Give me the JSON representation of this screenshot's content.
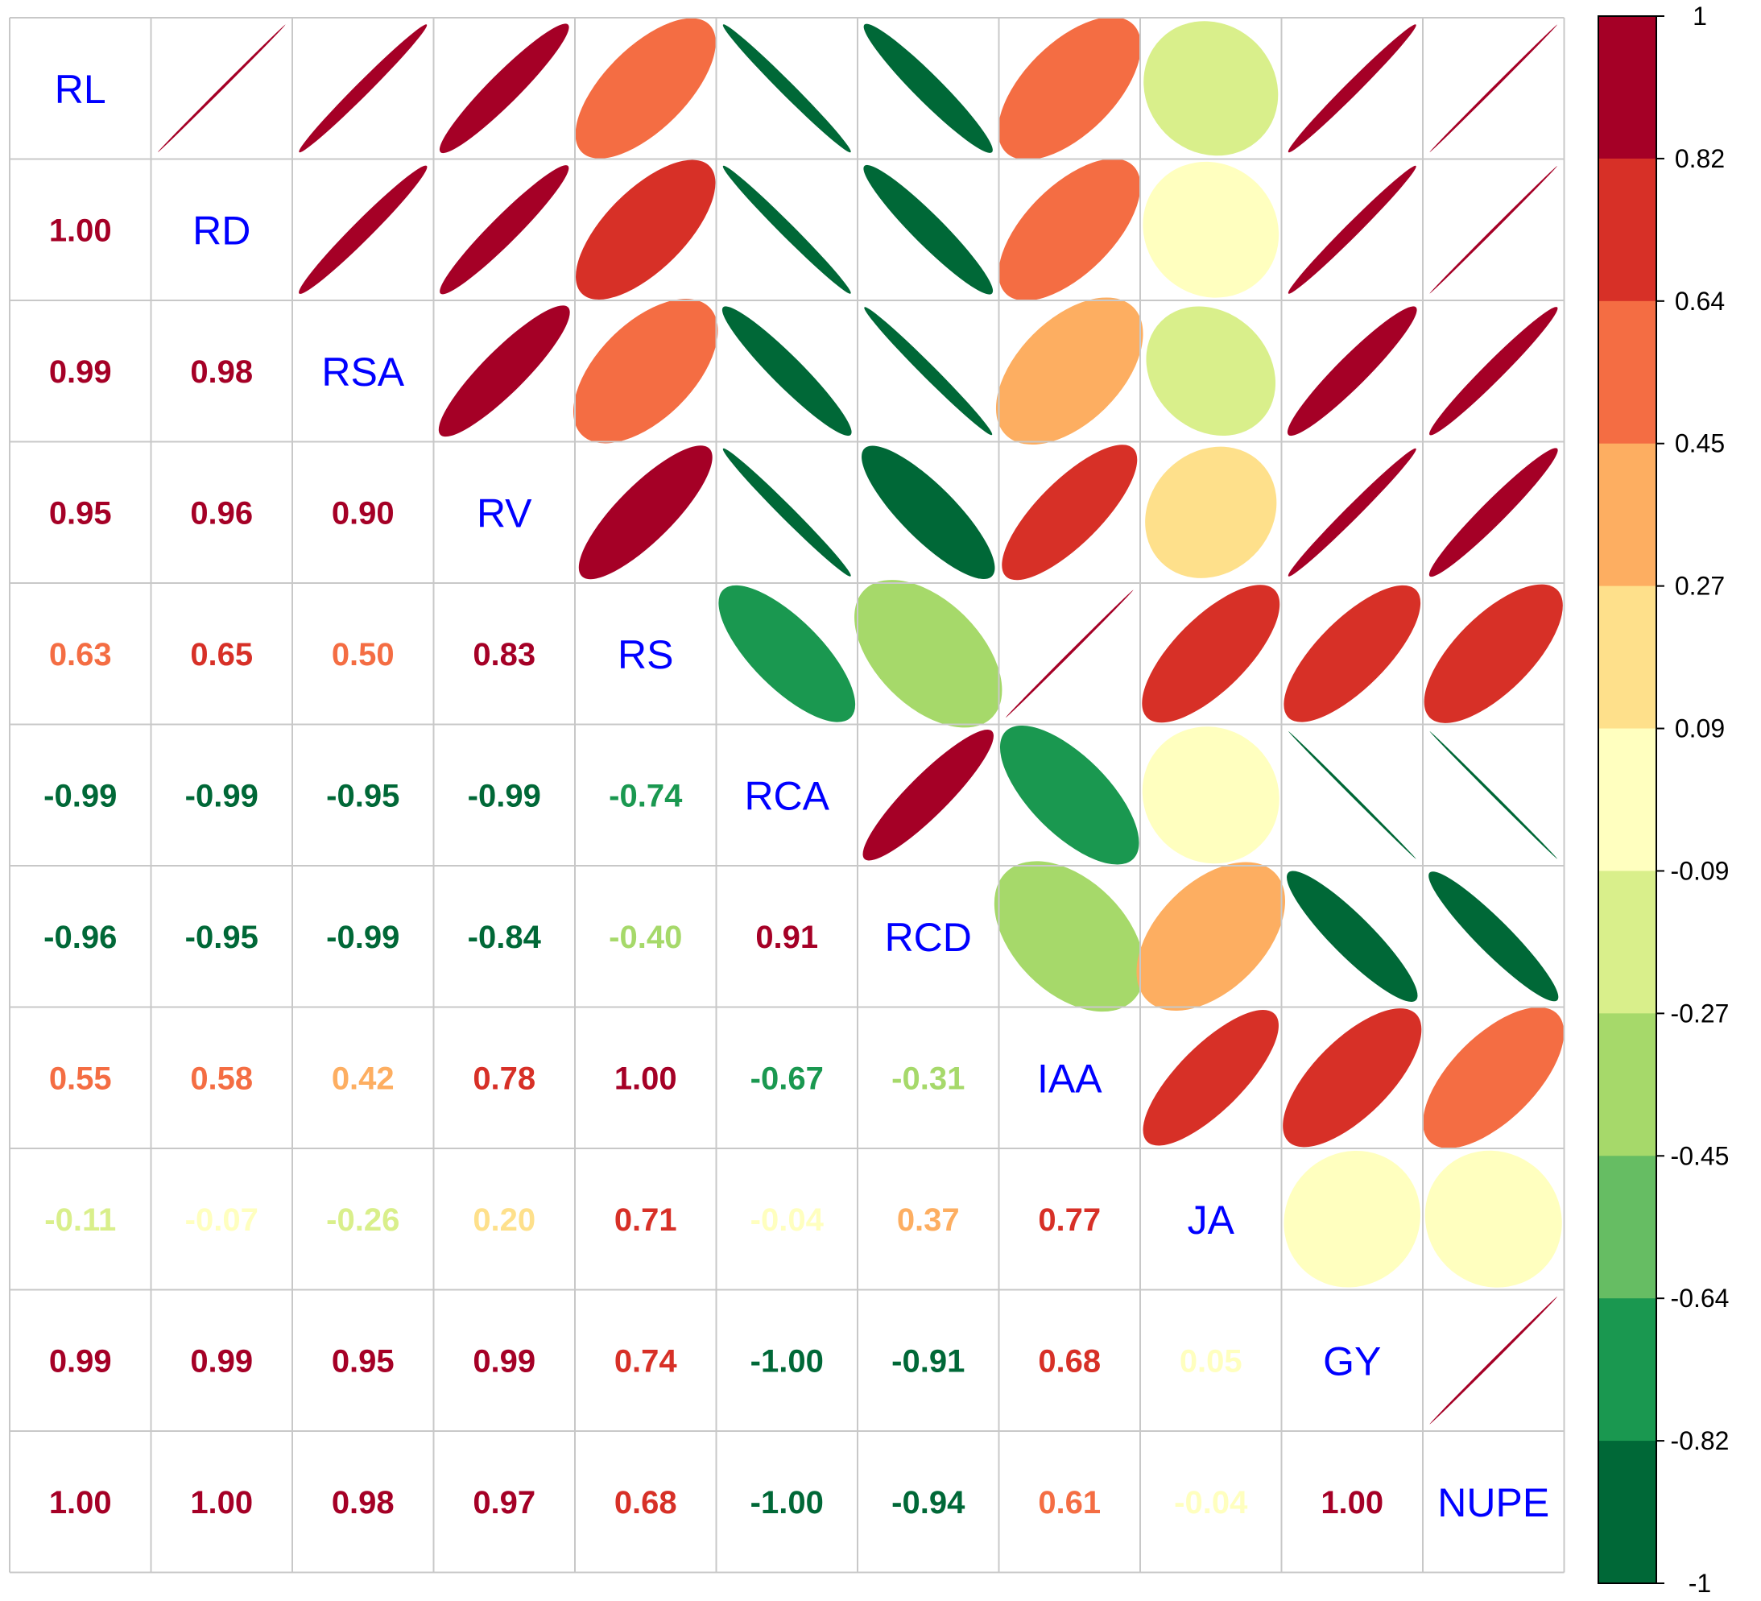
{
  "chart_data": {
    "type": "heatmap",
    "variables": [
      "RL",
      "RD",
      "RSA",
      "RV",
      "RS",
      "RCA",
      "RCD",
      "IAA",
      "JA",
      "GY",
      "NUPE"
    ],
    "matrix": [
      [
        1.0,
        1.0,
        0.99,
        0.95,
        0.63,
        -0.99,
        -0.96,
        0.55,
        -0.11,
        0.99,
        1.0
      ],
      [
        1.0,
        1.0,
        0.98,
        0.96,
        0.65,
        -0.99,
        -0.95,
        0.58,
        -0.07,
        0.99,
        1.0
      ],
      [
        0.99,
        0.98,
        1.0,
        0.9,
        0.5,
        -0.95,
        -0.99,
        0.42,
        -0.26,
        0.95,
        0.98
      ],
      [
        0.95,
        0.96,
        0.9,
        1.0,
        0.83,
        -0.99,
        -0.84,
        0.78,
        0.2,
        0.99,
        0.97
      ],
      [
        0.63,
        0.65,
        0.5,
        0.83,
        1.0,
        -0.74,
        -0.4,
        1.0,
        0.71,
        0.74,
        0.68
      ],
      [
        -0.99,
        -0.99,
        -0.95,
        -0.99,
        -0.74,
        1.0,
        0.91,
        -0.67,
        -0.04,
        -1.0,
        -1.0
      ],
      [
        -0.96,
        -0.95,
        -0.99,
        -0.84,
        -0.4,
        0.91,
        1.0,
        -0.31,
        0.37,
        -0.91,
        -0.94
      ],
      [
        0.55,
        0.58,
        0.42,
        0.78,
        1.0,
        -0.67,
        -0.31,
        1.0,
        0.77,
        0.68,
        0.61
      ],
      [
        -0.11,
        -0.07,
        -0.26,
        0.2,
        0.71,
        -0.04,
        0.37,
        0.77,
        1.0,
        0.05,
        -0.04
      ],
      [
        0.99,
        0.99,
        0.95,
        0.99,
        0.74,
        -1.0,
        -0.91,
        0.68,
        0.05,
        1.0,
        1.0
      ],
      [
        1.0,
        1.0,
        0.98,
        0.97,
        0.68,
        -1.0,
        -0.94,
        0.61,
        -0.04,
        1.0,
        1.0
      ]
    ],
    "lower_labels": [
      [],
      [
        "1.00"
      ],
      [
        "0.99",
        "0.98"
      ],
      [
        "0.95",
        "0.96",
        "0.90"
      ],
      [
        "0.63",
        "0.65",
        "0.50",
        "0.83"
      ],
      [
        "-0.99",
        "-0.99",
        "-0.95",
        "-0.99",
        "-0.74"
      ],
      [
        "-0.96",
        "-0.95",
        "-0.99",
        "-0.84",
        "-0.40",
        "0.91"
      ],
      [
        "0.55",
        "0.58",
        "0.42",
        "0.78",
        "1.00",
        "-0.67",
        "-0.31"
      ],
      [
        "-0.11",
        "-0.07",
        "-0.26",
        "0.20",
        "0.71",
        "-0.04",
        "0.37",
        "0.77"
      ],
      [
        "0.99",
        "0.99",
        "0.95",
        "0.99",
        "0.74",
        "-1.00",
        "-0.91",
        "0.68",
        "0.05"
      ],
      [
        "1.00",
        "1.00",
        "0.98",
        "0.97",
        "0.68",
        "-1.00",
        "-0.94",
        "0.61",
        "-0.04",
        "1.00"
      ]
    ],
    "upper_glyph": "ellipse",
    "lower_glyph": "number",
    "diagonal_label_color": "#0000ff",
    "grid": true,
    "legend_placement": "right",
    "color_range": [
      -1,
      1
    ],
    "colorbar_ticks": [
      "1",
      "0.82",
      "0.64",
      "0.45",
      "0.27",
      "0.09",
      "-0.09",
      "-0.27",
      "-0.45",
      "-0.64",
      "-0.82",
      "-1"
    ],
    "palette": [
      "#006837",
      "#1a9850",
      "#66bd63",
      "#a6d96a",
      "#d9ef8b",
      "#ffffbf",
      "#fee08b",
      "#fdae61",
      "#f46d43",
      "#d73027",
      "#a50026"
    ]
  }
}
